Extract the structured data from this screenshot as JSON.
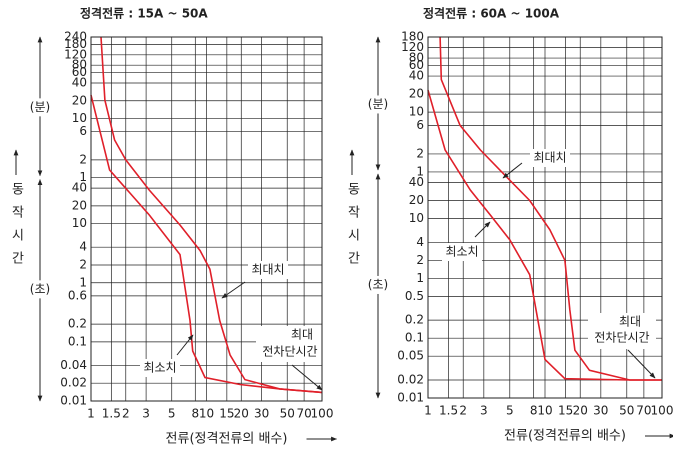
{
  "chart_data": [
    {
      "type": "line",
      "title": "정격전류 : 15A ~ 50A",
      "xlabel": "전류(정격전류의 배수)",
      "ylabel": "동작시간",
      "y_units": [
        "(분)",
        "(초)"
      ],
      "xscale": "log",
      "yscale": "log",
      "grid": true,
      "xlim": [
        1,
        100
      ],
      "xticks": [
        1,
        1.5,
        2,
        3,
        5,
        8,
        10,
        15,
        20,
        30,
        50,
        70,
        100
      ],
      "ylim": [
        0.01,
        14400
      ],
      "yticks": [
        {
          "value": 14400,
          "label": "240"
        },
        {
          "value": 10800,
          "label": "180"
        },
        {
          "value": 7200,
          "label": "120"
        },
        {
          "value": 4800,
          "label": "80"
        },
        {
          "value": 3600,
          "label": "60"
        },
        {
          "value": 2400,
          "label": "40"
        },
        {
          "value": 1200,
          "label": "20"
        },
        {
          "value": 600,
          "label": "10"
        },
        {
          "value": 360,
          "label": "6"
        },
        {
          "value": 120,
          "label": "2"
        },
        {
          "value": 60,
          "label": "1"
        },
        40,
        20,
        10,
        4,
        2,
        1,
        0.6,
        0.2,
        0.1,
        0.04,
        0.02,
        0.01
      ],
      "series": [
        {
          "name": "최대치",
          "color": "#e0202a",
          "x": [
            1.22,
            1.32,
            1.6,
            2,
            3.2,
            5.9,
            8.8,
            10.7,
            13,
            16,
            21.5,
            43,
            100
          ],
          "values": [
            14400,
            1230,
            260,
            120,
            37,
            9.5,
            3.5,
            1.7,
            0.23,
            0.06,
            0.023,
            0.016,
            0.014
          ]
        },
        {
          "name": "최소치",
          "color": "#e0202a",
          "x": [
            1,
            1.45,
            3.2,
            5.9,
            7.2,
            7.6,
            9.7,
            19.5,
            43,
            100
          ],
          "values": [
            1500,
            81,
            14,
            3,
            0.23,
            0.07,
            0.025,
            0.019,
            0.016,
            0.014
          ]
        }
      ],
      "annotation": [
        "최대",
        "전차단시간"
      ]
    },
    {
      "type": "line",
      "title": "정격전류 : 60A ~ 100A",
      "xlabel": "전류(정격전류의 배수)",
      "ylabel": "동작시간",
      "y_units": [
        "(분)",
        "(초)"
      ],
      "xscale": "log",
      "yscale": "log",
      "grid": true,
      "xlim": [
        1,
        100
      ],
      "xticks": [
        1,
        1.5,
        2,
        3,
        5,
        8,
        10,
        15,
        20,
        30,
        50,
        70,
        100
      ],
      "ylim": [
        0.01,
        10800
      ],
      "yticks": [
        {
          "value": 10800,
          "label": "180"
        },
        {
          "value": 7200,
          "label": "120"
        },
        {
          "value": 4800,
          "label": "80"
        },
        {
          "value": 3600,
          "label": "60"
        },
        {
          "value": 2400,
          "label": "40"
        },
        {
          "value": 1200,
          "label": "20"
        },
        {
          "value": 600,
          "label": "10"
        },
        {
          "value": 360,
          "label": "6"
        },
        {
          "value": 120,
          "label": "2"
        },
        {
          "value": 60,
          "label": "1"
        },
        40,
        20,
        10,
        4,
        2,
        1,
        0.5,
        0.2,
        0.1,
        0.05,
        0.02,
        0.01
      ],
      "series": [
        {
          "name": "최대치",
          "color": "#e0202a",
          "x": [
            1.27,
            1.3,
            1.88,
            2.8,
            4.5,
            7.4,
            11,
            14.8,
            16.3,
            18,
            24,
            53,
            100
          ],
          "values": [
            10800,
            2100,
            360,
            140,
            54,
            20,
            6.5,
            2,
            0.3,
            0.063,
            0.029,
            0.02,
            0.02
          ]
        },
        {
          "name": "최소치",
          "color": "#e0202a",
          "x": [
            1,
            1.4,
            2.3,
            3.4,
            5,
            7.4,
            8.7,
            10,
            14.8,
            53,
            100
          ],
          "values": [
            1400,
            140,
            30,
            11.5,
            4.4,
            1.15,
            0.2,
            0.044,
            0.021,
            0.02,
            0.02
          ]
        }
      ],
      "annotation": [
        "최대",
        "전차단시간"
      ]
    }
  ]
}
